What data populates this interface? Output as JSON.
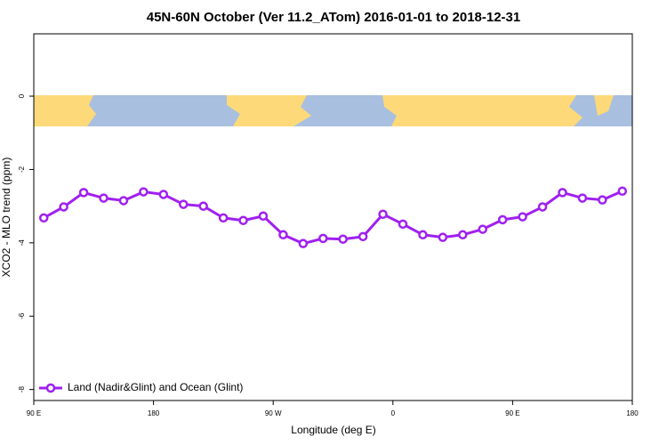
{
  "chart_data": {
    "type": "line",
    "title": "45N-60N October (Ver 11.2_ATom)   2016-01-01 to 2018-12-31",
    "x_label": "Longitude (deg E)",
    "y_label": "XCO2 - MLO trend (ppm)",
    "x": [
      97.5,
      112.5,
      127.5,
      142.5,
      157.5,
      172.5,
      187.5,
      202.5,
      217.5,
      232.5,
      247.5,
      262.5,
      277.5,
      292.5,
      307.5,
      322.5,
      337.5,
      352.5,
      367.5,
      382.5,
      397.5,
      412.5,
      427.5,
      442.5,
      457.5,
      472.5,
      487.5,
      502.5,
      517.5,
      532.5
    ],
    "series": [
      {
        "name": "Land (Nadir&Glint) and Ocean (Glint)",
        "color": "#a020f0",
        "values": [
          -3.32,
          -3.02,
          -2.63,
          -2.78,
          -2.85,
          -2.61,
          -2.68,
          -2.95,
          -3.0,
          -3.32,
          -3.39,
          -3.27,
          -3.78,
          -4.02,
          -3.88,
          -3.9,
          -3.83,
          -3.22,
          -3.49,
          -3.78,
          -3.85,
          -3.78,
          -3.63,
          -3.37,
          -3.29,
          -3.02,
          -2.63,
          -2.78,
          -2.83,
          -2.59
        ]
      }
    ],
    "xlim": [
      90,
      540
    ],
    "xticks": [
      {
        "value": 90,
        "label": "90 E"
      },
      {
        "value": 180,
        "label": "180"
      },
      {
        "value": 270,
        "label": "90 W"
      },
      {
        "value": 360,
        "label": "0"
      },
      {
        "value": 450,
        "label": "90 E"
      },
      {
        "value": 540,
        "label": "180"
      }
    ],
    "ylim": [
      -8.3,
      1.7
    ],
    "yticks": [
      0,
      -2,
      -4,
      -6,
      -8
    ],
    "legend": "bottom-left"
  }
}
